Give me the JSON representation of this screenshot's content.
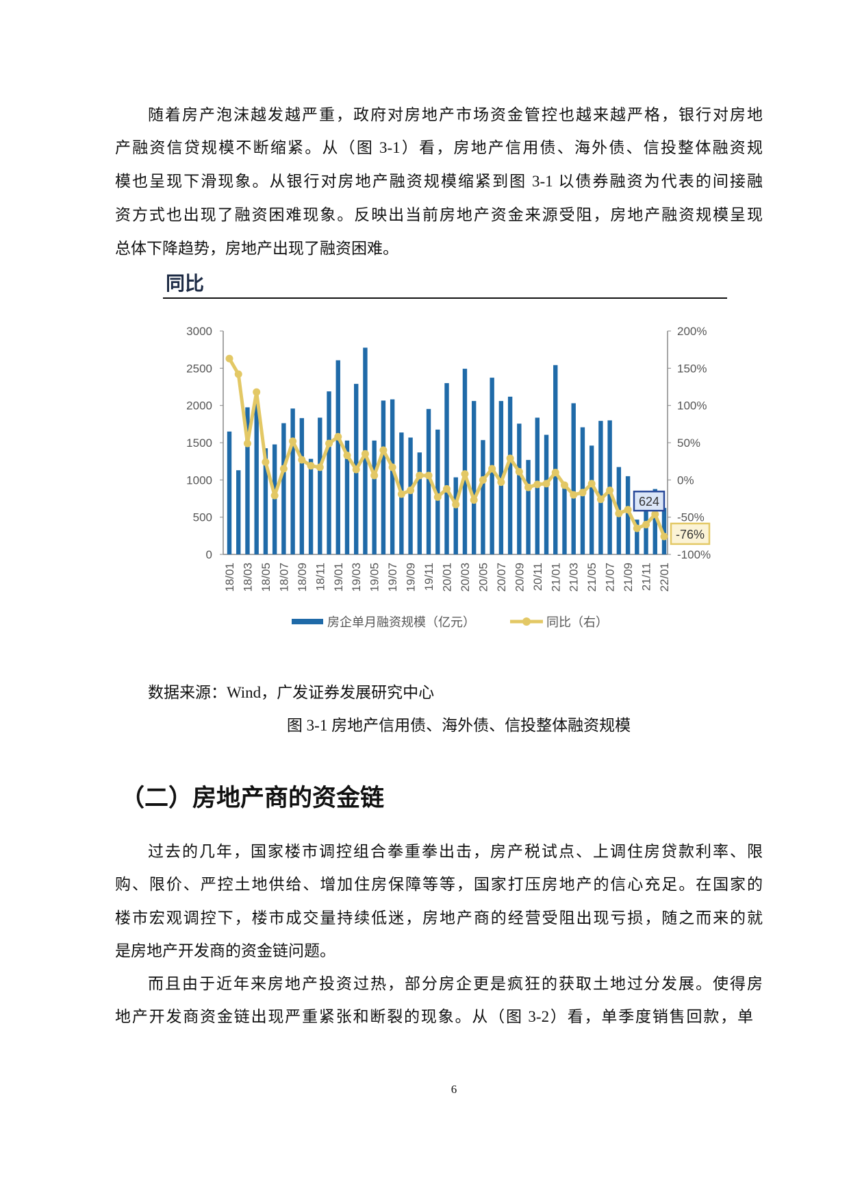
{
  "paragraph1": [
    "随着房产泡沫越发越严重，政府对房地产市场资金管控也越来越严格，银行对房地",
    "产融资信贷规模不断缩紧。从（图 3-1）看，房地产信用债、海外债、信投整体融资规",
    "模也呈现下滑现象。从银行对房地产融资规模缩紧到图 3-1 以债券融资为代表的间接融",
    "资方式也出现了融资困难现象。反映出当前房地产资金来源受阻，房地产融资规模呈现",
    "总体下降趋势，房地产出现了融资困难。"
  ],
  "figure": {
    "title": "同比",
    "source": "数据来源：Wind，广发证券发展研究中心",
    "caption": "图 3-1 房地产信用债、海外债、信投整体融资规模"
  },
  "chart_data": {
    "type": "bar+line",
    "categories": [
      "18/01",
      "18/02",
      "18/03",
      "18/04",
      "18/05",
      "18/06",
      "18/07",
      "18/08",
      "18/09",
      "18/10",
      "18/11",
      "18/12",
      "19/01",
      "19/02",
      "19/03",
      "19/04",
      "19/05",
      "19/06",
      "19/07",
      "19/08",
      "19/09",
      "19/10",
      "19/11",
      "19/12",
      "20/01",
      "20/02",
      "20/03",
      "20/04",
      "20/05",
      "20/06",
      "20/07",
      "20/08",
      "20/09",
      "20/10",
      "20/11",
      "20/12",
      "21/01",
      "21/02",
      "21/03",
      "21/04",
      "21/05",
      "21/06",
      "21/07",
      "21/08",
      "21/09",
      "21/10",
      "21/11",
      "21/12",
      "22/01"
    ],
    "tick_labels": [
      "18/01",
      "18/03",
      "18/05",
      "18/07",
      "18/09",
      "18/11",
      "19/01",
      "19/03",
      "19/05",
      "19/07",
      "19/09",
      "19/11",
      "20/01",
      "20/03",
      "20/05",
      "20/07",
      "20/09",
      "20/11",
      "21/01",
      "21/03",
      "21/05",
      "21/07",
      "21/09",
      "21/11",
      "22/01"
    ],
    "series": [
      {
        "name": "房企单月融资规模（亿元）",
        "type": "bar",
        "axis": "left",
        "color": "#1f6aa8",
        "values": [
          1650,
          1130,
          1975,
          2030,
          1425,
          1477,
          1762,
          1959,
          1830,
          1283,
          1836,
          2189,
          2607,
          1529,
          2290,
          2776,
          1529,
          2066,
          2082,
          1637,
          1569,
          1369,
          1953,
          1676,
          2300,
          1035,
          2493,
          2060,
          1535,
          2373,
          2060,
          2118,
          1756,
          1268,
          1836,
          1606,
          2542,
          950,
          2030,
          1707,
          1461,
          1793,
          1800,
          1173,
          1050,
          467,
          758,
          878,
          624
        ]
      },
      {
        "name": "同比（右）",
        "type": "line",
        "axis": "right",
        "color": "#e3c865",
        "values": [
          163,
          142,
          49,
          118,
          24,
          -21,
          15,
          52,
          27,
          19,
          17,
          49,
          58,
          33,
          14,
          35,
          6,
          40,
          17,
          -19,
          -14,
          6,
          6,
          -23,
          -12,
          -33,
          8,
          -27,
          0,
          15,
          -3,
          29,
          11,
          -10,
          -6,
          -5,
          10,
          -7,
          -20,
          -17,
          -5,
          -26,
          -14,
          -45,
          -40,
          -65,
          -60,
          -46,
          -76
        ]
      }
    ],
    "y_left": {
      "range": [
        0,
        3000
      ],
      "ticks": [
        "0",
        "500",
        "1000",
        "1500",
        "2000",
        "2500",
        "3000"
      ]
    },
    "y_right": {
      "range": [
        -100,
        200
      ],
      "ticks": [
        "-100%",
        "-50%",
        "0%",
        "50%",
        "100%",
        "150%",
        "200%"
      ]
    },
    "annotations": [
      {
        "label": "624",
        "series": "bar",
        "category": "22/01",
        "border": "#2a4a9a",
        "fill": "#dbe6f7"
      },
      {
        "label": "-76%",
        "series": "line",
        "category": "22/01",
        "border": "#e3c865",
        "fill": "#fbf3d6"
      }
    ],
    "legend": "bottom",
    "grid": false
  },
  "section": {
    "heading": "（二）房地产商的资金链"
  },
  "paragraph2": [
    "过去的几年，国家楼市调控组合拳重拳出击，房产税试点、上调住房贷款利率、限",
    "购、限价、严控土地供给、增加住房保障等等，国家打压房地产的信心充足。在国家的",
    "楼市宏观调控下，楼市成交量持续低迷，房地产商的经营受阻出现亏损，随之而来的就",
    "是房地产开发商的资金链问题。"
  ],
  "paragraph3": [
    "而且由于近年来房地产投资过热，部分房企更是疯狂的获取土地过分发展。使得房",
    "地产开发商资金链出现严重紧张和断裂的现象。从（图 3-2）看，单季度销售回款，单"
  ],
  "page_number": "6"
}
